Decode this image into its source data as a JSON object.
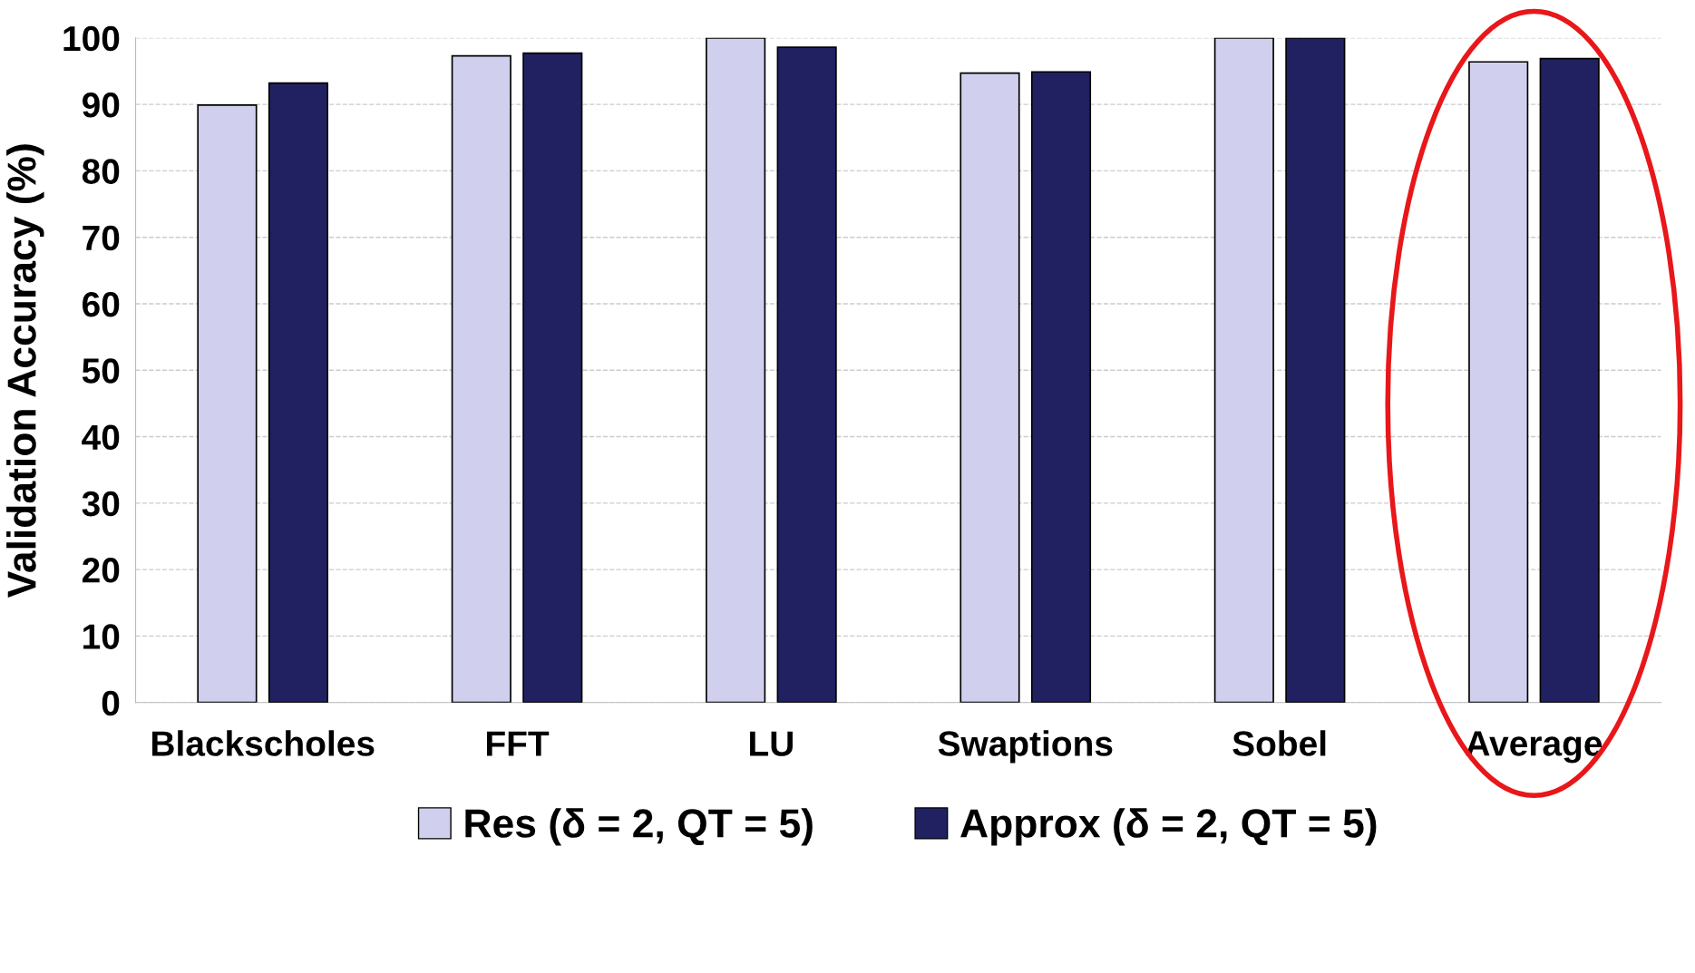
{
  "chart_data": {
    "type": "bar",
    "ylabel": "Validation Accuracy (%)",
    "categories": [
      "Blackscholes",
      "FFT",
      "LU",
      "Swaptions",
      "Sobel",
      "Average"
    ],
    "series": [
      {
        "name": "Res (δ = 2, QT = 5)",
        "color": "#d0d0ee",
        "values": [
          89.9,
          97.3,
          100,
          94.7,
          100,
          96.4
        ]
      },
      {
        "name": "Approx (δ = 2, QT = 5)",
        "color": "#212162",
        "values": [
          93.2,
          97.7,
          98.6,
          94.9,
          100,
          96.9
        ]
      }
    ],
    "ylim": [
      0,
      100
    ],
    "yticks": [
      0,
      10,
      20,
      30,
      40,
      50,
      60,
      70,
      80,
      90,
      100
    ],
    "grid": "y",
    "legend": "bottom"
  }
}
